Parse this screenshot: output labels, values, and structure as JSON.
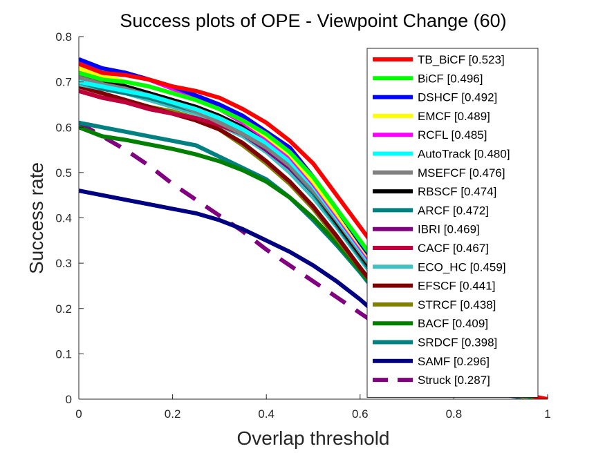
{
  "chart_data": {
    "type": "line",
    "title": "Success plots of OPE - Viewpoint Change (60)",
    "xlabel": "Overlap threshold",
    "ylabel": "Success rate",
    "xlim": [
      0,
      1
    ],
    "ylim": [
      0,
      0.8
    ],
    "x_ticks": [
      "0",
      "0.2",
      "0.4",
      "0.6",
      "0.8",
      "1"
    ],
    "y_ticks": [
      "0",
      "0.1",
      "0.2",
      "0.3",
      "0.4",
      "0.5",
      "0.6",
      "0.7",
      "0.8"
    ],
    "grid": false,
    "legend_position": "top-right",
    "x": [
      0,
      0.05,
      0.1,
      0.15,
      0.2,
      0.25,
      0.3,
      0.35,
      0.4,
      0.45,
      0.5,
      0.55,
      0.6,
      0.65,
      0.7,
      0.75,
      0.8,
      0.85,
      0.9,
      0.95,
      1.0
    ],
    "series": [
      {
        "name": "TB_BiCF [0.523]",
        "color": "#ff0000",
        "dashed": false,
        "values": [
          0.74,
          0.72,
          0.715,
          0.705,
          0.69,
          0.68,
          0.665,
          0.64,
          0.61,
          0.57,
          0.52,
          0.45,
          0.38,
          0.31,
          0.24,
          0.17,
          0.11,
          0.06,
          0.03,
          0.01,
          0.0
        ]
      },
      {
        "name": "BiCF [0.496]",
        "color": "#00ff00",
        "dashed": false,
        "values": [
          0.72,
          0.705,
          0.7,
          0.69,
          0.675,
          0.66,
          0.64,
          0.615,
          0.585,
          0.545,
          0.49,
          0.42,
          0.35,
          0.28,
          0.21,
          0.15,
          0.1,
          0.055,
          0.025,
          0.008,
          0.0
        ]
      },
      {
        "name": "DSHCF [0.492]",
        "color": "#0000ff",
        "dashed": false,
        "values": [
          0.75,
          0.73,
          0.72,
          0.705,
          0.69,
          0.67,
          0.65,
          0.625,
          0.59,
          0.555,
          0.49,
          0.42,
          0.345,
          0.275,
          0.21,
          0.145,
          0.095,
          0.05,
          0.022,
          0.007,
          0.0
        ]
      },
      {
        "name": "EMCF [0.489]",
        "color": "#ffff00",
        "dashed": false,
        "values": [
          0.73,
          0.715,
          0.7,
          0.69,
          0.675,
          0.66,
          0.64,
          0.615,
          0.58,
          0.54,
          0.48,
          0.41,
          0.34,
          0.27,
          0.205,
          0.14,
          0.09,
          0.048,
          0.02,
          0.006,
          0.0
        ]
      },
      {
        "name": "RCFL [0.485]",
        "color": "#ff00ff",
        "dashed": false,
        "values": [
          0.74,
          0.73,
          0.72,
          0.705,
          0.685,
          0.665,
          0.64,
          0.61,
          0.575,
          0.535,
          0.475,
          0.405,
          0.335,
          0.265,
          0.2,
          0.14,
          0.09,
          0.047,
          0.02,
          0.006,
          0.0
        ]
      },
      {
        "name": "AutoTrack [0.480]",
        "color": "#00ffff",
        "dashed": false,
        "values": [
          0.7,
          0.69,
          0.68,
          0.67,
          0.655,
          0.64,
          0.62,
          0.595,
          0.565,
          0.525,
          0.47,
          0.4,
          0.33,
          0.26,
          0.195,
          0.135,
          0.085,
          0.045,
          0.019,
          0.006,
          0.0
        ]
      },
      {
        "name": "MSEFCF [0.476]",
        "color": "#808080",
        "dashed": false,
        "values": [
          0.71,
          0.695,
          0.685,
          0.67,
          0.655,
          0.635,
          0.61,
          0.585,
          0.555,
          0.515,
          0.46,
          0.395,
          0.325,
          0.255,
          0.19,
          0.13,
          0.083,
          0.044,
          0.018,
          0.005,
          0.0
        ]
      },
      {
        "name": "RBSCF [0.474]",
        "color": "#000000",
        "dashed": false,
        "values": [
          0.72,
          0.705,
          0.69,
          0.675,
          0.66,
          0.645,
          0.625,
          0.6,
          0.565,
          0.52,
          0.46,
          0.39,
          0.32,
          0.25,
          0.185,
          0.127,
          0.08,
          0.042,
          0.017,
          0.005,
          0.0
        ]
      },
      {
        "name": "ARCF [0.472]",
        "color": "#008080",
        "dashed": false,
        "values": [
          0.7,
          0.685,
          0.675,
          0.665,
          0.65,
          0.635,
          0.615,
          0.59,
          0.56,
          0.515,
          0.455,
          0.385,
          0.315,
          0.245,
          0.18,
          0.123,
          0.078,
          0.041,
          0.017,
          0.005,
          0.0
        ]
      },
      {
        "name": "IBRI [0.469]",
        "color": "#800080",
        "dashed": false,
        "values": [
          0.71,
          0.7,
          0.69,
          0.675,
          0.66,
          0.64,
          0.615,
          0.585,
          0.55,
          0.51,
          0.455,
          0.39,
          0.32,
          0.25,
          0.185,
          0.125,
          0.078,
          0.04,
          0.016,
          0.005,
          0.0
        ]
      },
      {
        "name": "CACF [0.467]",
        "color": "#c0003c",
        "dashed": false,
        "values": [
          0.68,
          0.665,
          0.655,
          0.64,
          0.63,
          0.62,
          0.605,
          0.585,
          0.55,
          0.51,
          0.455,
          0.39,
          0.32,
          0.25,
          0.185,
          0.125,
          0.078,
          0.04,
          0.016,
          0.005,
          0.0
        ]
      },
      {
        "name": "ECO_HC [0.459]",
        "color": "#40c0c0",
        "dashed": false,
        "values": [
          0.695,
          0.685,
          0.675,
          0.66,
          0.645,
          0.63,
          0.605,
          0.58,
          0.545,
          0.5,
          0.445,
          0.38,
          0.31,
          0.24,
          0.175,
          0.118,
          0.074,
          0.038,
          0.015,
          0.004,
          0.0
        ]
      },
      {
        "name": "EFSCF [0.441]",
        "color": "#800000",
        "dashed": false,
        "values": [
          0.69,
          0.675,
          0.66,
          0.645,
          0.63,
          0.615,
          0.595,
          0.565,
          0.525,
          0.48,
          0.425,
          0.36,
          0.29,
          0.225,
          0.165,
          0.11,
          0.068,
          0.035,
          0.014,
          0.004,
          0.0
        ]
      },
      {
        "name": "STRCF [0.438]",
        "color": "#808000",
        "dashed": false,
        "values": [
          0.68,
          0.665,
          0.655,
          0.645,
          0.635,
          0.62,
          0.595,
          0.56,
          0.52,
          0.475,
          0.42,
          0.355,
          0.29,
          0.22,
          0.16,
          0.107,
          0.066,
          0.034,
          0.013,
          0.004,
          0.0
        ]
      },
      {
        "name": "BACF [0.409]",
        "color": "#008000",
        "dashed": false,
        "values": [
          0.6,
          0.58,
          0.572,
          0.562,
          0.552,
          0.54,
          0.525,
          0.505,
          0.48,
          0.445,
          0.4,
          0.345,
          0.285,
          0.22,
          0.16,
          0.106,
          0.065,
          0.033,
          0.013,
          0.004,
          0.0
        ]
      },
      {
        "name": "SRDCF [0.398]",
        "color": "#008080",
        "dashed": false,
        "values": [
          0.61,
          0.6,
          0.59,
          0.58,
          0.57,
          0.56,
          0.535,
          0.51,
          0.485,
          0.445,
          0.395,
          0.34,
          0.28,
          0.215,
          0.155,
          0.103,
          0.063,
          0.032,
          0.012,
          0.003,
          0.0
        ]
      },
      {
        "name": "SAMF [0.296]",
        "color": "#000080",
        "dashed": false,
        "values": [
          0.46,
          0.45,
          0.44,
          0.43,
          0.42,
          0.41,
          0.395,
          0.375,
          0.35,
          0.325,
          0.295,
          0.26,
          0.22,
          0.175,
          0.13,
          0.09,
          0.055,
          0.028,
          0.011,
          0.003,
          0.0
        ]
      },
      {
        "name": "Struck [0.287]",
        "color": "#800080",
        "dashed": true,
        "values": [
          0.61,
          0.58,
          0.55,
          0.515,
          0.475,
          0.44,
          0.405,
          0.37,
          0.33,
          0.295,
          0.26,
          0.225,
          0.19,
          0.155,
          0.12,
          0.088,
          0.058,
          0.032,
          0.013,
          0.003,
          0.0
        ]
      }
    ]
  }
}
